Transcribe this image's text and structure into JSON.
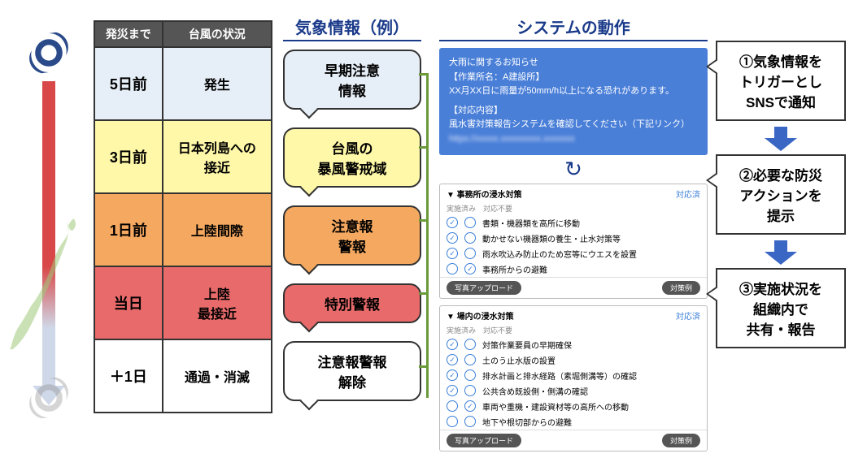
{
  "colors": {
    "header_bg": "#555555",
    "blue_text": "#1a3a8a",
    "notice_bg": "#4a7fd8",
    "arrow_fill": "#3a66c4",
    "row_colors": [
      "#e6eef7",
      "#fff8a8",
      "#f5a85f",
      "#e96a6a",
      "#ffffff"
    ]
  },
  "table": {
    "headers": [
      "発災まで",
      "台風の状況"
    ],
    "rows": [
      {
        "time": "5日前",
        "status": "発生"
      },
      {
        "time": "3日前",
        "status": "日本列島への\n接近"
      },
      {
        "time": "1日前",
        "status": "上陸間際"
      },
      {
        "time": "当日",
        "status": "上陸\n最接近"
      },
      {
        "time": "＋1日",
        "status": "通過・消滅"
      }
    ]
  },
  "col3": {
    "header": "気象情報（例）",
    "bubbles": [
      {
        "text": "早期注意\n情報",
        "bg": "#e6eef7"
      },
      {
        "text": "台風の\n暴風警戒域",
        "bg": "#fff8a8"
      },
      {
        "text": "注意報\n警報",
        "bg": "#f5a85f"
      },
      {
        "text": "特別警報",
        "bg": "#e96a6a"
      },
      {
        "text": "注意報警報\n解除",
        "bg": "#ffffff"
      }
    ]
  },
  "col4": {
    "header": "システムの動作",
    "notice": {
      "title": "大雨に関するお知らせ",
      "line1": "【作業所名：A建設所】",
      "line2": "XX月XX日に雨量が50mm/h以上になる恐れがあります。",
      "line3": "【対応内容】",
      "line4": "風水害対策報告システムを確認してください（下記リンク）"
    },
    "panel1": {
      "title": "▼ 事務所の浸水対策",
      "done": "対応済",
      "sub": "実施済み　対応不要",
      "items": [
        {
          "a": true,
          "b": false,
          "label": "書類・機器類を高所に移動"
        },
        {
          "a": true,
          "b": false,
          "label": "動かせない機器類の養生・止水対策等"
        },
        {
          "a": true,
          "b": false,
          "label": "雨水吹込み防止のため窓等にウエスを設置"
        },
        {
          "a": false,
          "b": true,
          "label": "事務所からの避難"
        }
      ],
      "upload": "写真アップロード",
      "example": "対策例"
    },
    "panel2": {
      "title": "▼ 場内の浸水対策",
      "done": "対応済",
      "sub": "実施済み　対応不要",
      "items": [
        {
          "a": true,
          "b": false,
          "label": "対策作業要員の早期確保"
        },
        {
          "a": true,
          "b": false,
          "label": "土のう止水版の設置"
        },
        {
          "a": true,
          "b": false,
          "label": "排水計画と排水経路（素堀側溝等）の確認"
        },
        {
          "a": true,
          "b": false,
          "label": "公共含め既設側・側溝の確認"
        },
        {
          "a": false,
          "b": true,
          "label": "車両や重機・建設資材等の高所への移動"
        },
        {
          "a": false,
          "b": false,
          "label": "地下や根切部からの避難"
        }
      ],
      "upload": "写真アップロード",
      "example": "対策例"
    }
  },
  "callouts": [
    "①気象情報を\nトリガーとし\nSNSで通知",
    "②必要な防災\nアクションを\n提示",
    "③実施状況を\n組織内で\n共有・報告"
  ]
}
